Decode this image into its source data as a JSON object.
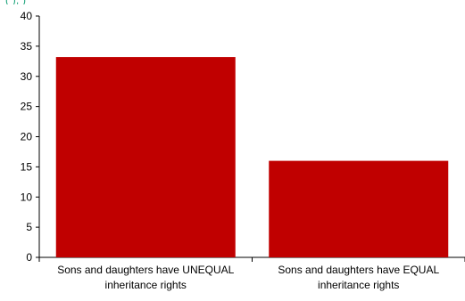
{
  "header": {
    "partial_text": "(                         ),              )"
  },
  "chart_data": {
    "type": "bar",
    "title": "",
    "xlabel": "",
    "ylabel": "",
    "categories": [
      [
        "Sons and daughters have UNEQUAL",
        "inheritance rights"
      ],
      [
        "Sons and daughters have EQUAL",
        "inheritance rights"
      ]
    ],
    "values": [
      33.2,
      16.0
    ],
    "ylim": [
      0,
      40
    ],
    "yticks": [
      "0",
      "5",
      "10",
      "15",
      "20",
      "25",
      "30",
      "35",
      "40"
    ],
    "bar_color": "#c00000",
    "grid": false,
    "legend": "none"
  }
}
